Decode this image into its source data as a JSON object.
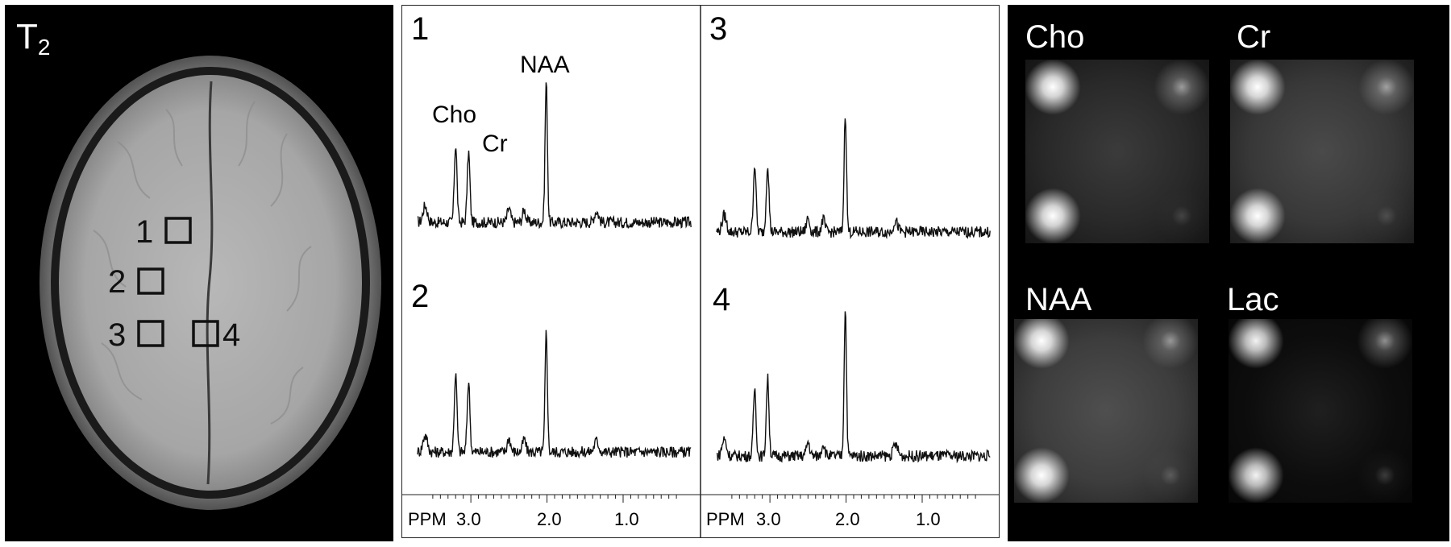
{
  "mri": {
    "title_main": "T",
    "title_sub": "2",
    "rois": [
      {
        "label": "1"
      },
      {
        "label": "2"
      },
      {
        "label": "3"
      },
      {
        "label": "4"
      }
    ]
  },
  "spectra": {
    "panels": [
      "1",
      "3",
      "2",
      "4"
    ],
    "peak_labels": {
      "naa": "NAA",
      "cho": "Cho",
      "cr": "Cr"
    },
    "axis": {
      "unit": "PPM",
      "ticks": [
        "3.0",
        "2.0",
        "1.0"
      ]
    }
  },
  "maps": {
    "labels": [
      "Cho",
      "Cr",
      "NAA",
      "Lac"
    ]
  },
  "colors": {
    "spectrum_line": "#111111",
    "background_dark": "#000000",
    "map_bright": "#ffffff"
  },
  "chart_data": {
    "type": "line",
    "title": "",
    "xlabel": "PPM",
    "ylabel": "",
    "xlim": [
      3.7,
      0.1
    ],
    "x_reversed": true,
    "grid": false,
    "annotations": [
      {
        "text": "Cho",
        "x": 3.2
      },
      {
        "text": "Cr",
        "x": 3.0
      },
      {
        "text": "NAA",
        "x": 2.0
      }
    ],
    "panels": [
      {
        "name": "1",
        "peaks": {
          "cho": 0.55,
          "cr": 0.5,
          "naa": 1.0
        }
      },
      {
        "name": "2",
        "peaks": {
          "cho": 0.55,
          "cr": 0.5,
          "naa": 0.85
        }
      },
      {
        "name": "3",
        "peaks": {
          "cho": 0.48,
          "cr": 0.48,
          "naa": 0.85
        }
      },
      {
        "name": "4",
        "peaks": {
          "cho": 0.48,
          "cr": 0.55,
          "naa": 1.05
        }
      }
    ]
  }
}
